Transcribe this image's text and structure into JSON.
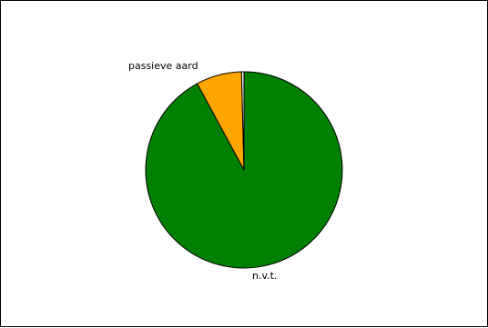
{
  "chart_data": {
    "type": "pie",
    "title": "",
    "labels": [
      "n.v.t.",
      "passieve aard",
      ""
    ],
    "values": [
      92.1,
      7.5,
      0.4
    ],
    "colors": [
      "#008000",
      "#ffa500",
      "#f2f2f2"
    ],
    "legend": "none",
    "start_angle_deg": 0,
    "direction": "clockwise"
  }
}
